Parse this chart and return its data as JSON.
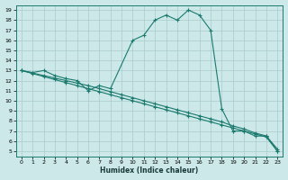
{
  "xlabel": "Humidex (Indice chaleur)",
  "bg_color": "#cce8e8",
  "grid_color": "#aacccc",
  "line_color": "#1a7a6e",
  "xlim": [
    -0.5,
    23.5
  ],
  "ylim": [
    4.5,
    19.5
  ],
  "xticks": [
    0,
    1,
    2,
    3,
    4,
    5,
    6,
    7,
    8,
    9,
    10,
    11,
    12,
    13,
    14,
    15,
    16,
    17,
    18,
    19,
    20,
    21,
    22,
    23
  ],
  "yticks": [
    5,
    6,
    7,
    8,
    9,
    10,
    11,
    12,
    13,
    14,
    15,
    16,
    17,
    18,
    19
  ],
  "line1_x": [
    0,
    1,
    2,
    3,
    4,
    5,
    6,
    7,
    8,
    10,
    11,
    12,
    13,
    14,
    15,
    16,
    17,
    18,
    19,
    20,
    21,
    22,
    23
  ],
  "line1_y": [
    13.0,
    12.8,
    13.0,
    12.5,
    12.2,
    12.0,
    11.0,
    11.5,
    11.2,
    16.0,
    16.5,
    18.0,
    18.5,
    18.0,
    19.0,
    18.5,
    17.0,
    9.2,
    7.0,
    7.0,
    6.5,
    6.5,
    5.0
  ],
  "line2_x": [
    0,
    1,
    2,
    3,
    4,
    5,
    6,
    7,
    8,
    9,
    10,
    11,
    12,
    13,
    14,
    15,
    16,
    17,
    18,
    19,
    20,
    21,
    22,
    23
  ],
  "line2_y": [
    13.0,
    12.7,
    12.4,
    12.1,
    11.8,
    11.5,
    11.2,
    10.9,
    10.6,
    10.3,
    10.0,
    9.7,
    9.4,
    9.1,
    8.8,
    8.5,
    8.2,
    7.9,
    7.6,
    7.3,
    7.0,
    6.7,
    6.4,
    5.0
  ],
  "line3_x": [
    0,
    1,
    2,
    3,
    4,
    5,
    6,
    7,
    8,
    9,
    10,
    11,
    12,
    13,
    14,
    15,
    16,
    17,
    18,
    19,
    20,
    21,
    22,
    23
  ],
  "line3_y": [
    13.0,
    12.75,
    12.5,
    12.25,
    12.0,
    11.75,
    11.5,
    11.2,
    10.9,
    10.6,
    10.3,
    10.0,
    9.7,
    9.4,
    9.1,
    8.8,
    8.5,
    8.2,
    7.9,
    7.5,
    7.2,
    6.8,
    6.5,
    5.2
  ]
}
